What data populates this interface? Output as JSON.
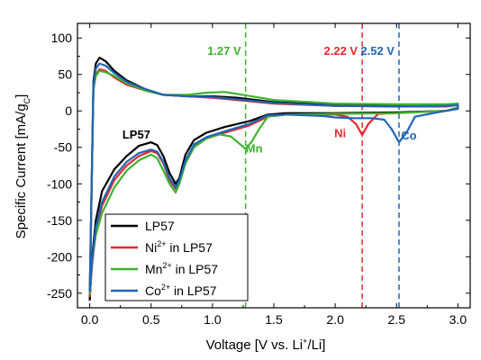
{
  "chart_data": {
    "type": "line",
    "xlabel_main": "Voltage [V vs. Li",
    "xlabel_sup": "+",
    "xlabel_end": "/Li]",
    "ylabel_main": "Specific Current [mA/g",
    "ylabel_sub": "C",
    "ylabel_end": "]",
    "xlim": [
      -0.1,
      3.1
    ],
    "ylim": [
      -270,
      120
    ],
    "xticks": [
      "0.0",
      "0.5",
      "1.0",
      "1.5",
      "2.0",
      "2.5",
      "3.0"
    ],
    "xtick_values": [
      0.0,
      0.5,
      1.0,
      1.5,
      2.0,
      2.5,
      3.0
    ],
    "yticks": [
      "100",
      "50",
      "0",
      "-50",
      "-100",
      "-150",
      "-200",
      "-250"
    ],
    "ytick_values": [
      100,
      50,
      0,
      -50,
      -100,
      -150,
      -200,
      -250
    ],
    "grid": false,
    "legend_position": "bottom-left",
    "legend": [
      {
        "base": "LP57",
        "sup": "",
        "tail": "",
        "color": "#000000"
      },
      {
        "base": "Ni",
        "sup": "2+",
        "tail": " in LP57",
        "color": "#e8282e"
      },
      {
        "base": "Mn",
        "sup": "2+",
        "tail": " in LP57",
        "color": "#3cb52e"
      },
      {
        "base": "Co",
        "sup": "2+",
        "tail": " in LP57",
        "color": "#1f65b8"
      }
    ],
    "vlines": [
      {
        "x": 1.27,
        "label": "1.27 V",
        "color": "#3cb52e"
      },
      {
        "x": 2.22,
        "label": "2.22 V",
        "color": "#e8282e"
      },
      {
        "x": 2.52,
        "label": "2.52 V",
        "color": "#1f65b8"
      }
    ],
    "annotations": [
      {
        "text": "LP57",
        "x": 0.38,
        "y": -38,
        "color": "#000000"
      },
      {
        "text": "Mn",
        "x": 1.34,
        "y": -57,
        "color": "#3cb52e"
      },
      {
        "text": "Ni",
        "x": 2.04,
        "y": -36,
        "color": "#e8282e"
      },
      {
        "text": "Co",
        "x": 2.6,
        "y": -39,
        "color": "#1f65b8"
      }
    ],
    "series": [
      {
        "name": "LP57",
        "color": "#000000",
        "points": [
          [
            0.0,
            -260
          ],
          [
            0.02,
            -200
          ],
          [
            0.05,
            -150
          ],
          [
            0.1,
            -110
          ],
          [
            0.2,
            -80
          ],
          [
            0.3,
            -62
          ],
          [
            0.4,
            -48
          ],
          [
            0.5,
            -43
          ],
          [
            0.55,
            -47
          ],
          [
            0.6,
            -62
          ],
          [
            0.65,
            -85
          ],
          [
            0.7,
            -100
          ],
          [
            0.73,
            -92
          ],
          [
            0.78,
            -60
          ],
          [
            0.85,
            -40
          ],
          [
            0.95,
            -30
          ],
          [
            1.1,
            -22
          ],
          [
            1.3,
            -14
          ],
          [
            1.45,
            -5
          ],
          [
            1.6,
            -3
          ],
          [
            2.0,
            -3
          ],
          [
            2.5,
            -2
          ],
          [
            2.9,
            0
          ],
          [
            3.0,
            3
          ],
          [
            3.0,
            8
          ],
          [
            2.9,
            7
          ],
          [
            2.5,
            7
          ],
          [
            2.0,
            8
          ],
          [
            1.5,
            12
          ],
          [
            1.2,
            18
          ],
          [
            1.0,
            20
          ],
          [
            0.8,
            20
          ],
          [
            0.6,
            22
          ],
          [
            0.45,
            30
          ],
          [
            0.3,
            42
          ],
          [
            0.2,
            55
          ],
          [
            0.13,
            68
          ],
          [
            0.08,
            73
          ],
          [
            0.05,
            65
          ],
          [
            0.03,
            40
          ],
          [
            0.0,
            -260
          ]
        ]
      },
      {
        "name": "Ni2+ in LP57",
        "color": "#e8282e",
        "points": [
          [
            0.0,
            -255
          ],
          [
            0.02,
            -210
          ],
          [
            0.05,
            -165
          ],
          [
            0.1,
            -130
          ],
          [
            0.2,
            -95
          ],
          [
            0.3,
            -75
          ],
          [
            0.4,
            -62
          ],
          [
            0.5,
            -55
          ],
          [
            0.55,
            -58
          ],
          [
            0.6,
            -72
          ],
          [
            0.65,
            -95
          ],
          [
            0.7,
            -107
          ],
          [
            0.73,
            -98
          ],
          [
            0.78,
            -70
          ],
          [
            0.85,
            -48
          ],
          [
            0.95,
            -38
          ],
          [
            1.1,
            -30
          ],
          [
            1.3,
            -20
          ],
          [
            1.45,
            -8
          ],
          [
            1.6,
            -5
          ],
          [
            2.0,
            -5
          ],
          [
            2.1,
            -8
          ],
          [
            2.17,
            -18
          ],
          [
            2.22,
            -33
          ],
          [
            2.27,
            -18
          ],
          [
            2.35,
            -4
          ],
          [
            2.5,
            -3
          ],
          [
            2.9,
            0
          ],
          [
            3.0,
            3
          ],
          [
            3.0,
            8
          ],
          [
            2.9,
            6
          ],
          [
            2.5,
            6
          ],
          [
            2.0,
            7
          ],
          [
            1.5,
            10
          ],
          [
            1.2,
            15
          ],
          [
            1.0,
            18
          ],
          [
            0.8,
            20
          ],
          [
            0.6,
            22
          ],
          [
            0.45,
            28
          ],
          [
            0.3,
            36
          ],
          [
            0.2,
            46
          ],
          [
            0.13,
            55
          ],
          [
            0.08,
            57
          ],
          [
            0.05,
            50
          ],
          [
            0.03,
            30
          ],
          [
            0.0,
            -255
          ]
        ]
      },
      {
        "name": "Mn2+ in LP57",
        "color": "#3cb52e",
        "points": [
          [
            0.0,
            -252
          ],
          [
            0.02,
            -205
          ],
          [
            0.05,
            -170
          ],
          [
            0.1,
            -140
          ],
          [
            0.2,
            -105
          ],
          [
            0.3,
            -82
          ],
          [
            0.4,
            -68
          ],
          [
            0.5,
            -60
          ],
          [
            0.55,
            -65
          ],
          [
            0.6,
            -82
          ],
          [
            0.65,
            -100
          ],
          [
            0.7,
            -112
          ],
          [
            0.73,
            -100
          ],
          [
            0.78,
            -72
          ],
          [
            0.85,
            -50
          ],
          [
            0.95,
            -38
          ],
          [
            1.05,
            -32
          ],
          [
            1.15,
            -35
          ],
          [
            1.22,
            -45
          ],
          [
            1.27,
            -52
          ],
          [
            1.32,
            -42
          ],
          [
            1.38,
            -25
          ],
          [
            1.45,
            -8
          ],
          [
            1.6,
            -5
          ],
          [
            2.0,
            -4
          ],
          [
            2.5,
            -3
          ],
          [
            2.9,
            0
          ],
          [
            3.0,
            5
          ],
          [
            3.0,
            10
          ],
          [
            2.9,
            9
          ],
          [
            2.5,
            9
          ],
          [
            2.0,
            10
          ],
          [
            1.5,
            15
          ],
          [
            1.25,
            22
          ],
          [
            1.1,
            26
          ],
          [
            0.95,
            25
          ],
          [
            0.8,
            22
          ],
          [
            0.6,
            22
          ],
          [
            0.45,
            28
          ],
          [
            0.3,
            38
          ],
          [
            0.2,
            48
          ],
          [
            0.13,
            53
          ],
          [
            0.08,
            55
          ],
          [
            0.05,
            48
          ],
          [
            0.03,
            28
          ],
          [
            0.0,
            -252
          ]
        ]
      },
      {
        "name": "Co2+ in LP57",
        "color": "#1f65b8",
        "points": [
          [
            0.0,
            -248
          ],
          [
            0.02,
            -205
          ],
          [
            0.05,
            -160
          ],
          [
            0.1,
            -125
          ],
          [
            0.2,
            -90
          ],
          [
            0.3,
            -70
          ],
          [
            0.4,
            -58
          ],
          [
            0.5,
            -53
          ],
          [
            0.55,
            -56
          ],
          [
            0.6,
            -70
          ],
          [
            0.65,
            -92
          ],
          [
            0.7,
            -105
          ],
          [
            0.73,
            -95
          ],
          [
            0.78,
            -68
          ],
          [
            0.85,
            -46
          ],
          [
            0.95,
            -36
          ],
          [
            1.1,
            -28
          ],
          [
            1.3,
            -18
          ],
          [
            1.45,
            -6
          ],
          [
            1.6,
            -5
          ],
          [
            1.9,
            -7
          ],
          [
            2.0,
            -9
          ],
          [
            2.15,
            -10
          ],
          [
            2.3,
            -10
          ],
          [
            2.4,
            -12
          ],
          [
            2.46,
            -25
          ],
          [
            2.52,
            -43
          ],
          [
            2.58,
            -30
          ],
          [
            2.65,
            -8
          ],
          [
            2.8,
            -3
          ],
          [
            2.9,
            0
          ],
          [
            3.0,
            3
          ],
          [
            3.0,
            8
          ],
          [
            2.9,
            7
          ],
          [
            2.5,
            6
          ],
          [
            2.0,
            7
          ],
          [
            1.5,
            11
          ],
          [
            1.2,
            16
          ],
          [
            1.0,
            19
          ],
          [
            0.8,
            20
          ],
          [
            0.6,
            22
          ],
          [
            0.45,
            30
          ],
          [
            0.3,
            40
          ],
          [
            0.2,
            52
          ],
          [
            0.13,
            62
          ],
          [
            0.08,
            65
          ],
          [
            0.05,
            58
          ],
          [
            0.03,
            35
          ],
          [
            0.0,
            -248
          ]
        ]
      }
    ]
  }
}
